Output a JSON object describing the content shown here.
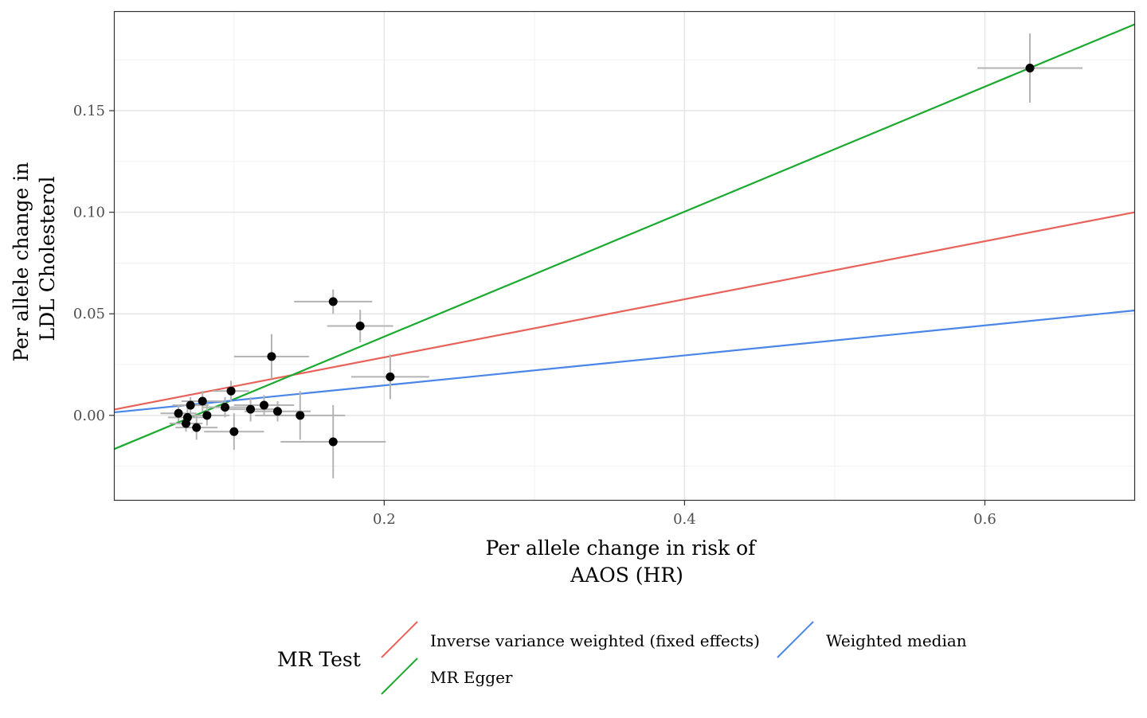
{
  "chart_data": {
    "type": "scatter",
    "xlabel": [
      "Per allele change in risk of",
      "AAOS (HR)"
    ],
    "ylabel": [
      "Per allele change in",
      "LDL Cholesterol"
    ],
    "xlim": [
      0.02,
      0.7
    ],
    "ylim": [
      -0.042,
      0.199
    ],
    "x_ticks": [
      0.2,
      0.4,
      0.6
    ],
    "y_ticks": [
      0.0,
      0.05,
      0.1,
      0.15
    ],
    "x_tick_labels": [
      "0.2",
      "0.4",
      "0.6"
    ],
    "y_tick_labels": [
      "0.00",
      "0.05",
      "0.10",
      "0.15"
    ],
    "grid": true,
    "points": [
      {
        "x": 0.063,
        "y": 0.001,
        "xerr": 0.012,
        "yerr": 0.004
      },
      {
        "x": 0.068,
        "y": -0.004,
        "xerr": 0.011,
        "yerr": 0.004
      },
      {
        "x": 0.069,
        "y": -0.001,
        "xerr": 0.013,
        "yerr": 0.005
      },
      {
        "x": 0.071,
        "y": 0.005,
        "xerr": 0.012,
        "yerr": 0.004
      },
      {
        "x": 0.075,
        "y": -0.006,
        "xerr": 0.014,
        "yerr": 0.006
      },
      {
        "x": 0.079,
        "y": 0.007,
        "xerr": 0.014,
        "yerr": 0.005
      },
      {
        "x": 0.082,
        "y": 0.0,
        "xerr": 0.015,
        "yerr": 0.005
      },
      {
        "x": 0.094,
        "y": 0.004,
        "xerr": 0.015,
        "yerr": 0.005
      },
      {
        "x": 0.098,
        "y": 0.012,
        "xerr": 0.012,
        "yerr": 0.005
      },
      {
        "x": 0.1,
        "y": -0.008,
        "xerr": 0.02,
        "yerr": 0.009
      },
      {
        "x": 0.111,
        "y": 0.003,
        "xerr": 0.02,
        "yerr": 0.006
      },
      {
        "x": 0.12,
        "y": 0.005,
        "xerr": 0.02,
        "yerr": 0.005
      },
      {
        "x": 0.125,
        "y": 0.029,
        "xerr": 0.025,
        "yerr": 0.011
      },
      {
        "x": 0.129,
        "y": 0.002,
        "xerr": 0.022,
        "yerr": 0.005
      },
      {
        "x": 0.144,
        "y": 0.0,
        "xerr": 0.03,
        "yerr": 0.012
      },
      {
        "x": 0.166,
        "y": 0.056,
        "xerr": 0.026,
        "yerr": 0.006
      },
      {
        "x": 0.166,
        "y": -0.013,
        "xerr": 0.035,
        "yerr": 0.018
      },
      {
        "x": 0.184,
        "y": 0.044,
        "xerr": 0.022,
        "yerr": 0.008
      },
      {
        "x": 0.204,
        "y": 0.019,
        "xerr": 0.026,
        "yerr": 0.011
      },
      {
        "x": 0.63,
        "y": 0.171,
        "xerr": 0.035,
        "yerr": 0.017
      }
    ],
    "lines": [
      {
        "name": "Inverse variance weighted (fixed effects)",
        "intercept": 0.0,
        "slope": 0.1429,
        "color": "#e8625a"
      },
      {
        "name": "MR Egger",
        "intercept": -0.0228,
        "slope": 0.3077,
        "color": "#1aaa2e"
      },
      {
        "name": "Weighted median",
        "intercept": 0.0,
        "slope": 0.0738,
        "color": "#4a86e8"
      }
    ],
    "legend": {
      "title": "MR Test",
      "position": "bottom",
      "items": [
        "Inverse variance weighted (fixed effects)",
        "MR Egger",
        "Weighted median"
      ]
    }
  }
}
